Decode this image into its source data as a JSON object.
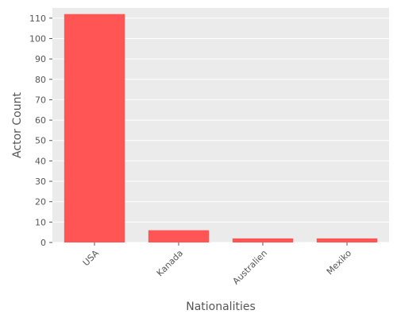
{
  "chart_data": {
    "type": "bar",
    "title": "",
    "xlabel": "Nationalities",
    "ylabel": "Actor Count",
    "categories": [
      "USA",
      "Kanada",
      "Australien",
      "Mexiko"
    ],
    "values": [
      112,
      6,
      2,
      2
    ],
    "ylim": [
      0,
      115
    ],
    "yticks": [
      0,
      10,
      20,
      30,
      40,
      50,
      60,
      70,
      80,
      90,
      100,
      110
    ],
    "grid": true,
    "legend": "none",
    "colors": {
      "bar": "#ff5555",
      "panel": "#ebebeb",
      "grid": "#ffffff",
      "text": "#555555"
    }
  }
}
